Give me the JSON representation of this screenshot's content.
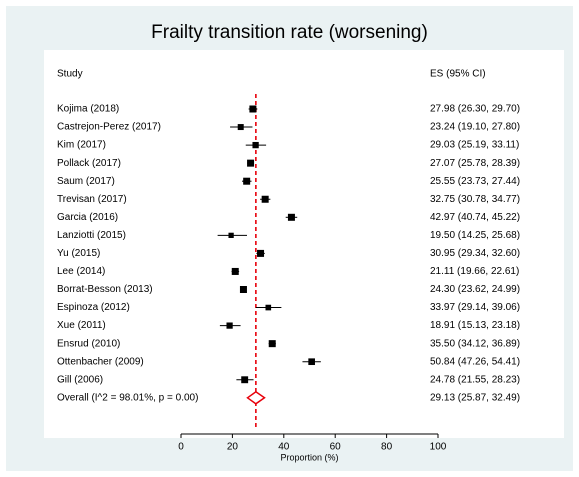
{
  "chart_data": {
    "type": "forest",
    "title": "Frailty transition rate (worsening)",
    "col_study": "Study",
    "col_es": "ES (95% CI)",
    "xlabel": "Proportion (%)",
    "xlim": [
      0,
      100
    ],
    "xticks": [
      0,
      20,
      40,
      60,
      80,
      100
    ],
    "overall_line": 29.13,
    "studies": [
      {
        "label": "Kojima (2018)",
        "es": 27.98,
        "lo": 26.3,
        "hi": 29.7,
        "text": "27.98 (26.30, 29.70)"
      },
      {
        "label": "Castrejon-Perez (2017)",
        "es": 23.24,
        "lo": 19.1,
        "hi": 27.8,
        "text": "23.24 (19.10, 27.80)"
      },
      {
        "label": "Kim (2017)",
        "es": 29.03,
        "lo": 25.19,
        "hi": 33.11,
        "text": "29.03 (25.19, 33.11)"
      },
      {
        "label": "Pollack (2017)",
        "es": 27.07,
        "lo": 25.78,
        "hi": 28.39,
        "text": "27.07 (25.78, 28.39)"
      },
      {
        "label": "Saum (2017)",
        "es": 25.55,
        "lo": 23.73,
        "hi": 27.44,
        "text": "25.55 (23.73, 27.44)"
      },
      {
        "label": "Trevisan (2017)",
        "es": 32.75,
        "lo": 30.78,
        "hi": 34.77,
        "text": "32.75 (30.78, 34.77)"
      },
      {
        "label": "Garcia (2016)",
        "es": 42.97,
        "lo": 40.74,
        "hi": 45.22,
        "text": "42.97 (40.74, 45.22)"
      },
      {
        "label": "Lanziotti (2015)",
        "es": 19.5,
        "lo": 14.25,
        "hi": 25.68,
        "text": "19.50 (14.25, 25.68)"
      },
      {
        "label": "Yu (2015)",
        "es": 30.95,
        "lo": 29.34,
        "hi": 32.6,
        "text": "30.95 (29.34, 32.60)"
      },
      {
        "label": "Lee (2014)",
        "es": 21.11,
        "lo": 19.66,
        "hi": 22.61,
        "text": "21.11 (19.66, 22.61)"
      },
      {
        "label": "Borrat-Besson (2013)",
        "es": 24.3,
        "lo": 23.62,
        "hi": 24.99,
        "text": "24.30 (23.62, 24.99)"
      },
      {
        "label": "Espinoza (2012)",
        "es": 33.97,
        "lo": 29.14,
        "hi": 39.06,
        "text": "33.97 (29.14, 39.06)"
      },
      {
        "label": "Xue (2011)",
        "es": 18.91,
        "lo": 15.13,
        "hi": 23.18,
        "text": "18.91 (15.13, 23.18)"
      },
      {
        "label": "Ensrud (2010)",
        "es": 35.5,
        "lo": 34.12,
        "hi": 36.89,
        "text": "35.50 (34.12, 36.89)"
      },
      {
        "label": "Ottenbacher (2009)",
        "es": 50.84,
        "lo": 47.26,
        "hi": 54.41,
        "text": "50.84 (47.26, 54.41)"
      },
      {
        "label": "Gill (2006)",
        "es": 24.78,
        "lo": 21.55,
        "hi": 28.23,
        "text": "24.78 (21.55, 28.23)"
      }
    ],
    "overall": {
      "label": "Overall  (I^2 = 98.01%, p = 0.00)",
      "es": 29.13,
      "lo": 25.87,
      "hi": 32.49,
      "text": "29.13 (25.87, 32.49)"
    },
    "colors": {
      "background": "#eaf2f3",
      "panel": "#ffffff",
      "marker": "#000000",
      "ci": "#000000",
      "overall_diamond": "#e8000b",
      "overall_line": "#e8000b"
    }
  }
}
